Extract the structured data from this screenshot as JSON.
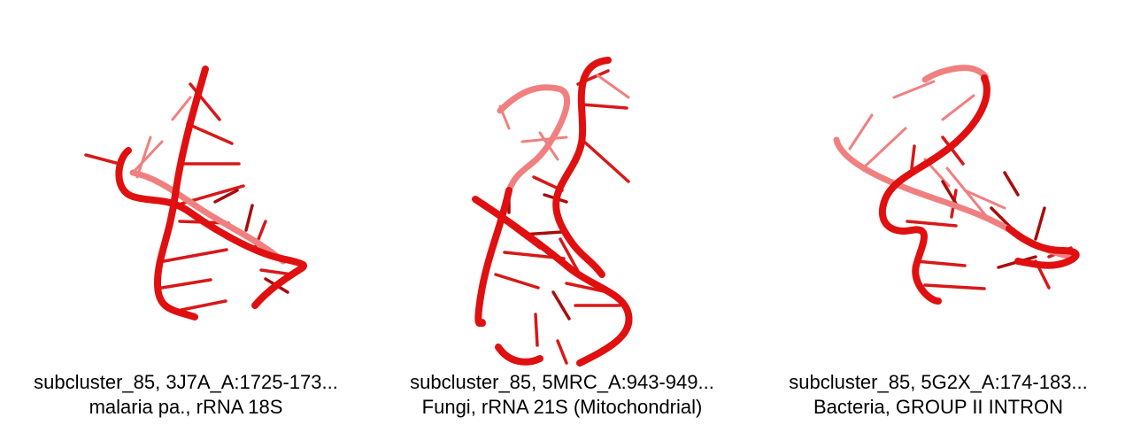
{
  "panels": [
    {
      "id_line": "subcluster_85, 3J7A_A:1725-173...",
      "source_line": "malaria pa., rRNA 18S"
    },
    {
      "id_line": "subcluster_85, 5MRC_A:943-949...",
      "source_line": "Fungi, rRNA 21S (Mitochondrial)"
    },
    {
      "id_line": "subcluster_85, 5G2X_A:174-183...",
      "source_line": "Bacteria, GROUP II INTRON"
    }
  ],
  "colors": {
    "backbone": "#e01010",
    "backbone_far": "#f08080",
    "base": "#d81818",
    "base_dark": "#a80c0c"
  }
}
